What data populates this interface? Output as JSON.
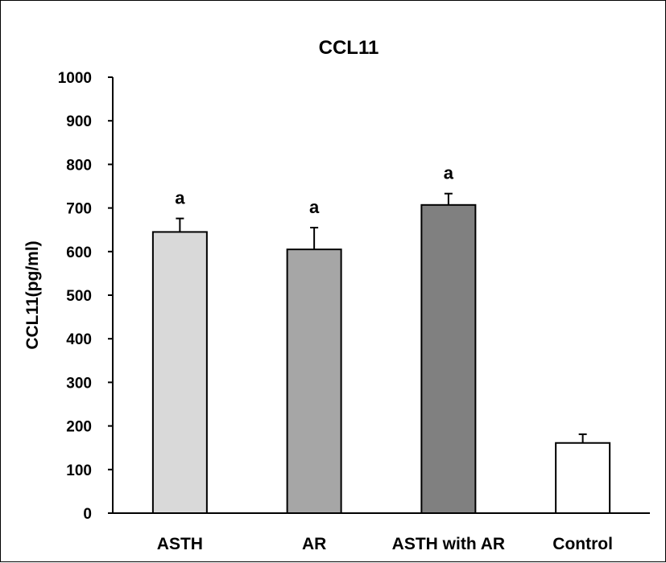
{
  "chart_data": {
    "type": "bar",
    "title": "CCL11",
    "xlabel": "",
    "ylabel": "CCL11(pg/ml)",
    "ylim": [
      0,
      1000
    ],
    "yticks": [
      0,
      100,
      200,
      300,
      400,
      500,
      600,
      700,
      800,
      900,
      1000
    ],
    "categories": [
      "ASTH",
      "AR",
      "ASTH with AR",
      "Control"
    ],
    "values": [
      645,
      605,
      707,
      161
    ],
    "errors": [
      31,
      50,
      26,
      20
    ],
    "annotations": [
      "a",
      "a",
      "a",
      ""
    ],
    "bar_colors": [
      "#d9d9d9",
      "#a6a6a6",
      "#808080",
      "#ffffff"
    ],
    "grid": false,
    "legend": "none"
  }
}
